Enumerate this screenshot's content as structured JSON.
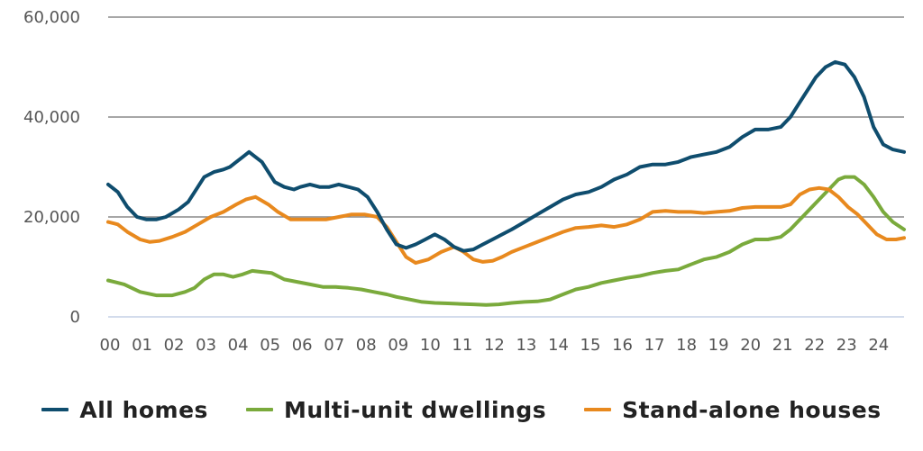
{
  "chart_data": {
    "type": "line",
    "title": "",
    "xlabel": "",
    "ylabel": "",
    "ylim": [
      0,
      60000
    ],
    "yticks": [
      0,
      20000,
      40000,
      60000
    ],
    "ytick_labels": [
      "0",
      "20,000",
      "40,000",
      "60,000"
    ],
    "xlim": [
      2000.0,
      2024.85
    ],
    "x_tick_labels": [
      "00",
      "01",
      "02",
      "03",
      "04",
      "05",
      "06",
      "07",
      "08",
      "09",
      "10",
      "11",
      "12",
      "13",
      "14",
      "15",
      "16",
      "17",
      "18",
      "19",
      "20",
      "21",
      "22",
      "23",
      "24"
    ],
    "grid": "horizontal",
    "legend": "bottom",
    "series": [
      {
        "name": "All homes",
        "color": "#0f4d6e",
        "x": [
          2000.0,
          2000.3,
          2000.6,
          2000.9,
          2001.2,
          2001.5,
          2001.8,
          2002.2,
          2002.5,
          2002.8,
          2003.0,
          2003.3,
          2003.6,
          2003.8,
          2004.0,
          2004.2,
          2004.4,
          2004.6,
          2004.8,
          2005.0,
          2005.2,
          2005.5,
          2005.8,
          2006.0,
          2006.3,
          2006.6,
          2006.9,
          2007.2,
          2007.5,
          2007.8,
          2008.1,
          2008.4,
          2008.7,
          2009.0,
          2009.3,
          2009.6,
          2009.9,
          2010.2,
          2010.5,
          2010.8,
          2011.1,
          2011.4,
          2011.7,
          2012.0,
          2012.3,
          2012.6,
          2013.0,
          2013.4,
          2013.8,
          2014.2,
          2014.6,
          2015.0,
          2015.4,
          2015.8,
          2016.2,
          2016.6,
          2017.0,
          2017.4,
          2017.8,
          2018.2,
          2018.6,
          2019.0,
          2019.4,
          2019.8,
          2020.2,
          2020.6,
          2021.0,
          2021.3,
          2021.6,
          2021.9,
          2022.1,
          2022.4,
          2022.7,
          2023.0,
          2023.3,
          2023.6,
          2023.9,
          2024.2,
          2024.5,
          2024.85
        ],
        "y": [
          26500,
          25000,
          22000,
          20000,
          19500,
          19500,
          20000,
          21500,
          23000,
          26000,
          28000,
          29000,
          29500,
          30000,
          31000,
          32000,
          33000,
          32000,
          31000,
          29000,
          27000,
          26000,
          25500,
          26000,
          26500,
          26000,
          26000,
          26500,
          26000,
          25500,
          24000,
          21000,
          17500,
          14500,
          13800,
          14500,
          15500,
          16500,
          15500,
          14000,
          13200,
          13500,
          14500,
          15500,
          16500,
          17500,
          19000,
          20500,
          22000,
          23500,
          24500,
          25000,
          26000,
          27500,
          28500,
          30000,
          30500,
          30500,
          31000,
          32000,
          32500,
          33000,
          34000,
          36000,
          37500,
          37500,
          38000,
          40000,
          43000,
          46000,
          48000,
          50000,
          51000,
          50500,
          48000,
          44000,
          38000,
          34500,
          33500,
          33000
        ]
      },
      {
        "name": "Multi-unit dwellings",
        "color": "#7aaa3c",
        "x": [
          2000.0,
          2000.5,
          2001.0,
          2001.5,
          2002.0,
          2002.4,
          2002.7,
          2003.0,
          2003.3,
          2003.6,
          2003.9,
          2004.2,
          2004.5,
          2004.8,
          2005.1,
          2005.5,
          2005.9,
          2006.3,
          2006.7,
          2007.1,
          2007.5,
          2007.9,
          2008.3,
          2008.7,
          2009.0,
          2009.4,
          2009.8,
          2010.2,
          2010.6,
          2011.0,
          2011.4,
          2011.8,
          2012.2,
          2012.6,
          2013.0,
          2013.4,
          2013.8,
          2014.2,
          2014.6,
          2015.0,
          2015.4,
          2015.8,
          2016.2,
          2016.6,
          2017.0,
          2017.4,
          2017.8,
          2018.2,
          2018.6,
          2019.0,
          2019.4,
          2019.8,
          2020.2,
          2020.6,
          2021.0,
          2021.3,
          2021.6,
          2021.9,
          2022.2,
          2022.5,
          2022.8,
          2023.0,
          2023.3,
          2023.6,
          2023.9,
          2024.2,
          2024.5,
          2024.85
        ],
        "y": [
          7300,
          6500,
          5000,
          4300,
          4300,
          5000,
          5800,
          7500,
          8500,
          8500,
          8000,
          8500,
          9200,
          9000,
          8800,
          7500,
          7000,
          6500,
          6000,
          6000,
          5800,
          5500,
          5000,
          4500,
          4000,
          3500,
          3000,
          2800,
          2700,
          2600,
          2500,
          2400,
          2500,
          2800,
          3000,
          3100,
          3500,
          4500,
          5500,
          6000,
          6800,
          7300,
          7800,
          8200,
          8800,
          9200,
          9500,
          10500,
          11500,
          12000,
          13000,
          14500,
          15500,
          15500,
          16000,
          17500,
          19500,
          21500,
          23500,
          25500,
          27500,
          28000,
          28000,
          26500,
          24000,
          21000,
          19000,
          17500
        ]
      },
      {
        "name": "Stand-alone houses",
        "color": "#e8891e",
        "x": [
          2000.0,
          2000.3,
          2000.6,
          2001.0,
          2001.3,
          2001.6,
          2002.0,
          2002.4,
          2002.8,
          2003.2,
          2003.6,
          2004.0,
          2004.3,
          2004.6,
          2005.0,
          2005.3,
          2005.7,
          2006.0,
          2006.4,
          2006.8,
          2007.2,
          2007.6,
          2008.0,
          2008.4,
          2008.7,
          2009.0,
          2009.3,
          2009.6,
          2010.0,
          2010.4,
          2010.8,
          2011.1,
          2011.4,
          2011.7,
          2012.0,
          2012.3,
          2012.6,
          2013.0,
          2013.4,
          2013.8,
          2014.2,
          2014.6,
          2015.0,
          2015.4,
          2015.8,
          2016.2,
          2016.6,
          2017.0,
          2017.4,
          2017.8,
          2018.2,
          2018.6,
          2019.0,
          2019.4,
          2019.8,
          2020.2,
          2020.6,
          2021.0,
          2021.3,
          2021.6,
          2021.9,
          2022.2,
          2022.5,
          2022.8,
          2023.1,
          2023.4,
          2023.7,
          2024.0,
          2024.3,
          2024.6,
          2024.85
        ],
        "y": [
          19000,
          18500,
          17000,
          15500,
          15000,
          15200,
          16000,
          17000,
          18500,
          20000,
          21000,
          22500,
          23500,
          24000,
          22500,
          21000,
          19500,
          19500,
          19500,
          19500,
          20000,
          20500,
          20500,
          20000,
          18000,
          15000,
          12000,
          10800,
          11500,
          13000,
          14000,
          13000,
          11500,
          11000,
          11200,
          12000,
          13000,
          14000,
          15000,
          16000,
          17000,
          17800,
          18000,
          18300,
          18000,
          18500,
          19500,
          21000,
          21200,
          21000,
          21000,
          20800,
          21000,
          21200,
          21800,
          22000,
          22000,
          22000,
          22500,
          24500,
          25500,
          25800,
          25500,
          24000,
          22000,
          20500,
          18500,
          16500,
          15500,
          15500,
          15800
        ]
      }
    ]
  }
}
